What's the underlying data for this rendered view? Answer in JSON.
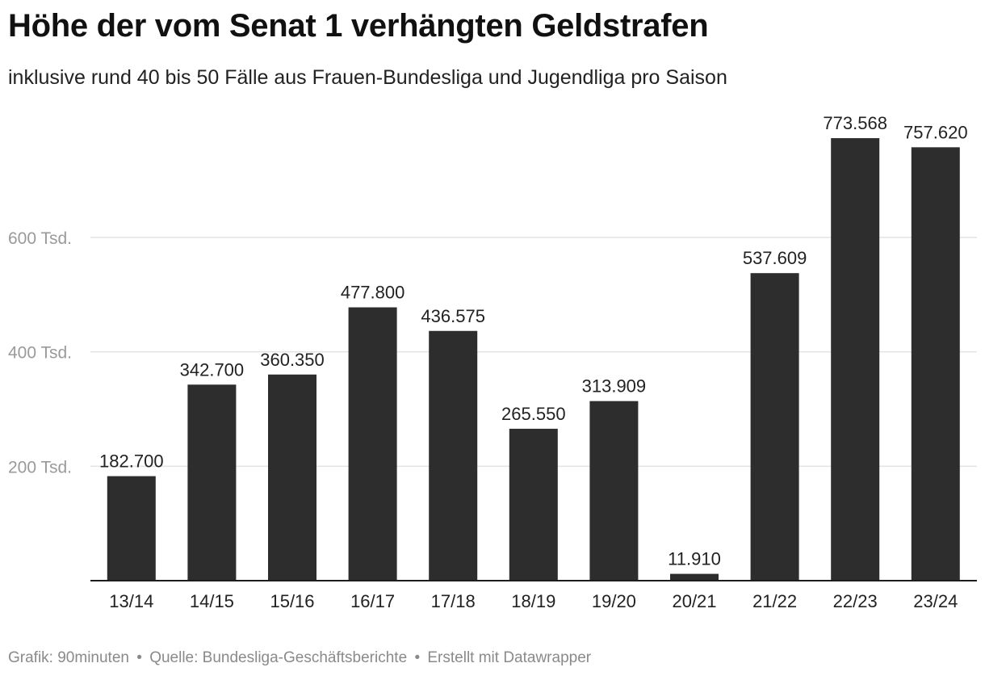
{
  "chart_data": {
    "type": "bar",
    "title": "Höhe der vom Senat 1 verhängten Geldstrafen",
    "subtitle": "inklusive rund 40 bis 50 Fälle aus Frauen-Bundesliga und Jugendliga pro Saison",
    "xlabel": "",
    "ylabel": "",
    "categories": [
      "13/14",
      "14/15",
      "15/16",
      "16/17",
      "17/18",
      "18/19",
      "19/20",
      "20/21",
      "21/22",
      "22/23",
      "23/24"
    ],
    "values": [
      182700,
      342700,
      360350,
      477800,
      436575,
      265550,
      313909,
      11910,
      537609,
      773568,
      757620
    ],
    "data_labels": [
      "182.700",
      "342.700",
      "360.350",
      "477.800",
      "436.575",
      "265.550",
      "313.909",
      "11.910",
      "537.609",
      "773.568",
      "757.620"
    ],
    "yticks": [
      200000,
      400000,
      600000
    ],
    "ytick_labels": [
      "200 Tsd.",
      "400 Tsd.",
      "600 Tsd."
    ],
    "ylim": [
      0,
      800000
    ],
    "grid": true,
    "bar_color": "#2d2d2d",
    "grid_color": "#e3e3e3"
  },
  "footer": {
    "grafik": "Grafik: 90minuten",
    "sep1": "•",
    "quelle": "Quelle: Bundesliga-Geschäftsberichte",
    "sep2": "•",
    "erstellt": "Erstellt mit Datawrapper"
  }
}
